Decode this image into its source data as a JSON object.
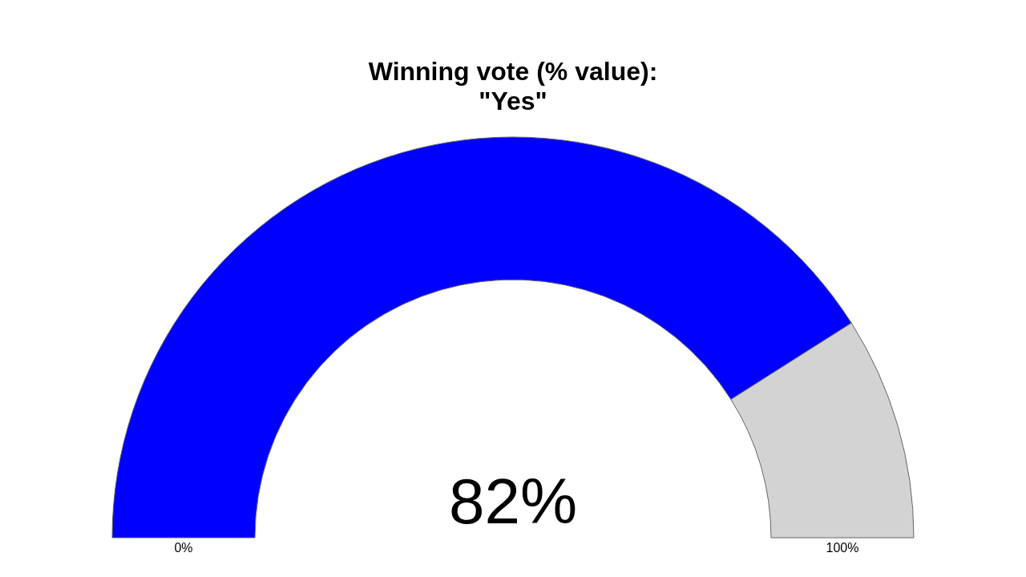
{
  "chart_data": {
    "type": "donut",
    "title": "Winning vote (% value):\n\"Yes\"",
    "categories": [
      null,
      null
    ],
    "values": [
      82,
      18
    ],
    "colors": [
      "#0000ff",
      "#d3d3d3"
    ],
    "value_labels": [
      "82%",
      null
    ],
    "annotations": [
      "0%",
      "100%"
    ]
  }
}
